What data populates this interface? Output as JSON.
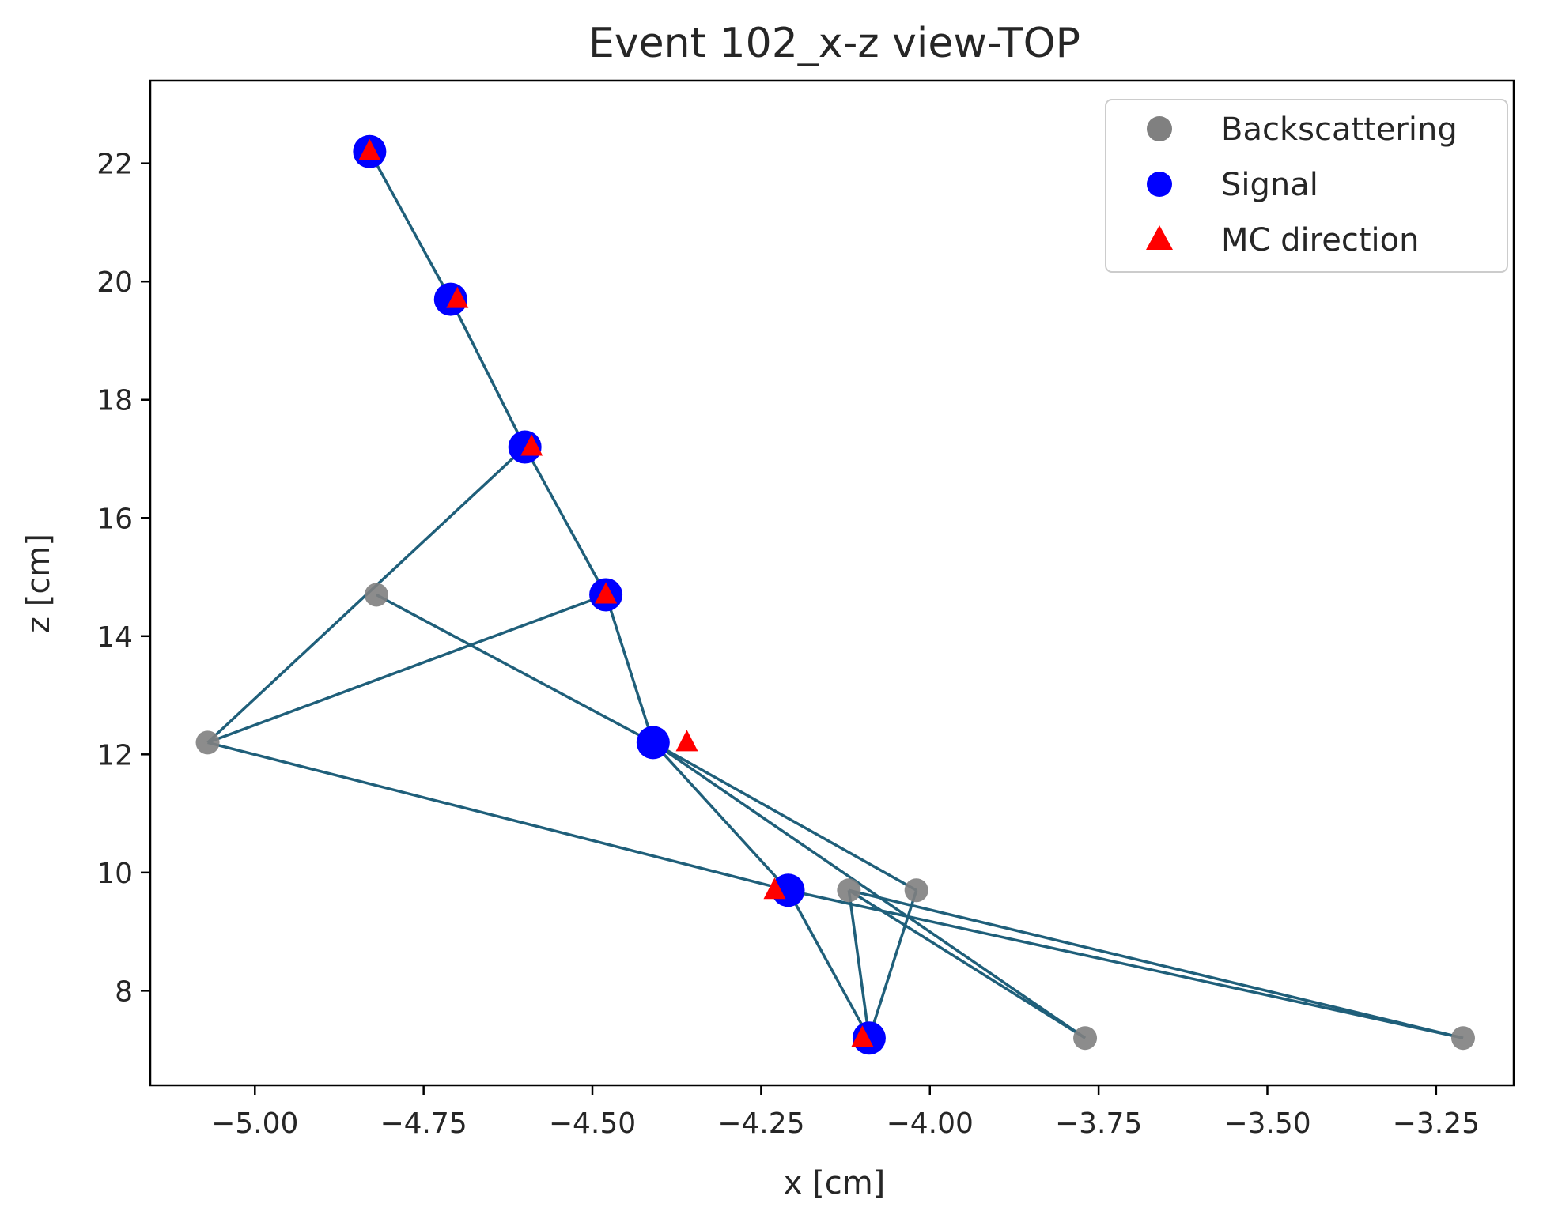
{
  "chart_data": {
    "type": "scatter",
    "title": "Event 102_x-z view-TOP",
    "xlabel": "x [cm]",
    "ylabel": "z [cm]",
    "xlim": [
      -5.155,
      -3.135
    ],
    "ylim": [
      6.4,
      23.4
    ],
    "x_ticks": [
      -5.0,
      -4.75,
      -4.5,
      -4.25,
      -4.0,
      -3.75,
      -3.5,
      -3.25
    ],
    "x_tick_labels": [
      "−5.00",
      "−4.75",
      "−4.50",
      "−4.25",
      "−4.00",
      "−3.75",
      "−3.50",
      "−3.25"
    ],
    "y_ticks": [
      8,
      10,
      12,
      14,
      16,
      18,
      20,
      22
    ],
    "y_tick_labels": [
      "8",
      "10",
      "12",
      "14",
      "16",
      "18",
      "20",
      "22"
    ],
    "grid": false,
    "legend_position": "top-right",
    "colors": {
      "backscattering": "#808080",
      "signal": "#0000ff",
      "mc_direction": "#ff0000",
      "line": "#1f5f7a"
    },
    "series": [
      {
        "name": "Backscattering",
        "marker": "circle",
        "points": [
          {
            "x": -4.82,
            "z": 14.7
          },
          {
            "x": -5.07,
            "z": 12.2
          },
          {
            "x": -4.12,
            "z": 9.7
          },
          {
            "x": -4.02,
            "z": 9.7
          },
          {
            "x": -3.77,
            "z": 7.2
          },
          {
            "x": -3.21,
            "z": 7.2
          }
        ]
      },
      {
        "name": "Signal",
        "marker": "circle",
        "points": [
          {
            "x": -4.83,
            "z": 22.2
          },
          {
            "x": -4.71,
            "z": 19.7
          },
          {
            "x": -4.6,
            "z": 17.2
          },
          {
            "x": -4.48,
            "z": 14.7
          },
          {
            "x": -4.41,
            "z": 12.2
          },
          {
            "x": -4.21,
            "z": 9.7
          },
          {
            "x": -4.09,
            "z": 7.2
          }
        ]
      },
      {
        "name": "MC direction",
        "marker": "triangle",
        "points": [
          {
            "x": -4.83,
            "z": 22.2
          },
          {
            "x": -4.7,
            "z": 19.7
          },
          {
            "x": -4.59,
            "z": 17.2
          },
          {
            "x": -4.48,
            "z": 14.7
          },
          {
            "x": -4.36,
            "z": 12.2
          },
          {
            "x": -4.23,
            "z": 9.7
          },
          {
            "x": -4.1,
            "z": 7.2
          }
        ]
      }
    ],
    "lines": [
      [
        {
          "x": -4.83,
          "z": 22.2
        },
        {
          "x": -4.71,
          "z": 19.7
        }
      ],
      [
        {
          "x": -4.71,
          "z": 19.7
        },
        {
          "x": -4.6,
          "z": 17.2
        }
      ],
      [
        {
          "x": -4.6,
          "z": 17.2
        },
        {
          "x": -4.48,
          "z": 14.7
        }
      ],
      [
        {
          "x": -4.48,
          "z": 14.7
        },
        {
          "x": -4.41,
          "z": 12.2
        }
      ],
      [
        {
          "x": -4.6,
          "z": 17.2
        },
        {
          "x": -5.07,
          "z": 12.2
        }
      ],
      [
        {
          "x": -4.48,
          "z": 14.7
        },
        {
          "x": -5.07,
          "z": 12.2
        }
      ],
      [
        {
          "x": -4.82,
          "z": 14.7
        },
        {
          "x": -4.41,
          "z": 12.2
        }
      ],
      [
        {
          "x": -5.07,
          "z": 12.2
        },
        {
          "x": -4.21,
          "z": 9.7
        }
      ],
      [
        {
          "x": -4.41,
          "z": 12.2
        },
        {
          "x": -4.21,
          "z": 9.7
        }
      ],
      [
        {
          "x": -4.41,
          "z": 12.2
        },
        {
          "x": -4.02,
          "z": 9.7
        }
      ],
      [
        {
          "x": -4.41,
          "z": 12.2
        },
        {
          "x": -3.77,
          "z": 7.2
        }
      ],
      [
        {
          "x": -4.21,
          "z": 9.7
        },
        {
          "x": -4.09,
          "z": 7.2
        }
      ],
      [
        {
          "x": -4.21,
          "z": 9.7
        },
        {
          "x": -3.21,
          "z": 7.2
        }
      ],
      [
        {
          "x": -4.12,
          "z": 9.7
        },
        {
          "x": -4.09,
          "z": 7.2
        }
      ],
      [
        {
          "x": -4.12,
          "z": 9.7
        },
        {
          "x": -3.77,
          "z": 7.2
        }
      ],
      [
        {
          "x": -4.12,
          "z": 9.7
        },
        {
          "x": -3.21,
          "z": 7.2
        }
      ],
      [
        {
          "x": -4.02,
          "z": 9.7
        },
        {
          "x": -4.09,
          "z": 7.2
        }
      ]
    ]
  }
}
